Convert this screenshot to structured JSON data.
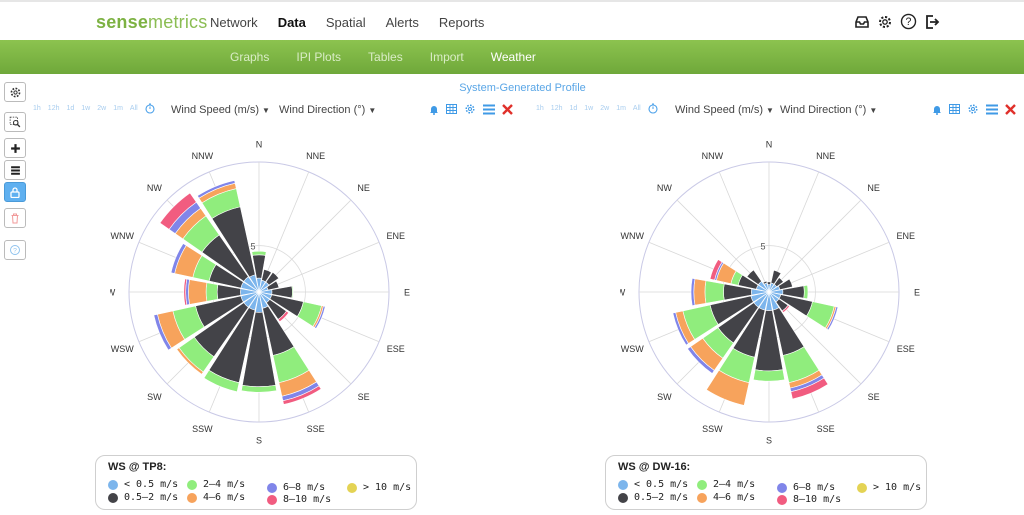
{
  "brand": {
    "part1": "sense",
    "part2": "metrics"
  },
  "nav": {
    "items": [
      "Network",
      "Data",
      "Spatial",
      "Alerts",
      "Reports"
    ],
    "active": "Data"
  },
  "top_icons": [
    "inbox-icon",
    "gear-icon",
    "help-icon",
    "logout-icon"
  ],
  "subnav": {
    "items": [
      "Graphs",
      "IPI Plots",
      "Tables",
      "Import",
      "Weather"
    ],
    "active": "Weather"
  },
  "profile_label": "System-Generated Profile",
  "time_ranges": [
    "1h",
    "12h",
    "1d",
    "1w",
    "2w",
    "1m",
    "All"
  ],
  "dropdowns": {
    "speed": "Wind Speed (m/s)",
    "direction": "Wind Direction (°)"
  },
  "colors": {
    "brand_green": "#7db243",
    "accent_blue": "#5aa6e6",
    "close_red": "#e0302a"
  },
  "chart_data": [
    {
      "type": "windrose",
      "title": "WS @ TP8:",
      "directions": [
        "N",
        "NNE",
        "NE",
        "ENE",
        "E",
        "ESE",
        "SE",
        "SSE",
        "S",
        "SSW",
        "SW",
        "WSW",
        "W",
        "WNW",
        "NW",
        "NNW"
      ],
      "ring_labels": [
        {
          "value": 5,
          "label": "5"
        }
      ],
      "rmax": 14,
      "bins": [
        {
          "name": "< 0.5 m/s",
          "color": "#7cb5ec"
        },
        {
          "name": "0.5–2 m/s",
          "color": "#434348"
        },
        {
          "name": "2–4 m/s",
          "color": "#90ed7d"
        },
        {
          "name": "4–6 m/s",
          "color": "#f7a35c"
        },
        {
          "name": "6–8 m/s",
          "color": "#8085e9"
        },
        {
          "name": "8–10 m/s",
          "color": "#f15c80"
        },
        {
          "name": "> 10 m/s",
          "color": "#e4d354"
        }
      ],
      "values": [
        [
          1.5,
          2.5,
          0.4,
          0,
          0,
          0,
          0
        ],
        [
          1.3,
          1.2,
          0,
          0,
          0,
          0,
          0
        ],
        [
          1.3,
          1.3,
          0,
          0,
          0,
          0,
          0
        ],
        [
          1.0,
          1.2,
          0,
          0,
          0,
          0,
          0
        ],
        [
          1.4,
          2.2,
          0.1,
          0,
          0,
          0,
          0
        ],
        [
          1.4,
          3.5,
          2.0,
          0.2,
          0.2,
          0,
          0
        ],
        [
          1.4,
          2.2,
          0,
          0,
          0,
          0.3,
          0
        ],
        [
          1.8,
          5.2,
          3.0,
          1.5,
          0.5,
          0.4,
          0
        ],
        [
          2.2,
          8.0,
          0.6,
          0,
          0,
          0,
          0
        ],
        [
          2.0,
          8.0,
          1.0,
          0,
          0,
          0,
          0
        ],
        [
          2.0,
          6.5,
          2.0,
          0.3,
          0,
          0,
          0
        ],
        [
          2.0,
          5.0,
          2.5,
          1.7,
          0.4,
          0,
          0
        ],
        [
          2.0,
          2.5,
          1.2,
          1.9,
          0.3,
          0.2,
          0
        ],
        [
          2.0,
          3.5,
          1.8,
          2.0,
          0.4,
          0,
          0
        ],
        [
          2.0,
          5.5,
          2.5,
          1.0,
          0.8,
          1.2,
          0
        ],
        [
          1.9,
          7.5,
          2.0,
          0.6,
          0.3,
          0,
          0
        ]
      ]
    },
    {
      "type": "windrose",
      "title": "WS @ DW-16:",
      "directions": [
        "N",
        "NNE",
        "NE",
        "ENE",
        "E",
        "ESE",
        "SE",
        "SSE",
        "S",
        "SSW",
        "SW",
        "WSW",
        "W",
        "WNW",
        "NW",
        "NNW"
      ],
      "ring_labels": [
        {
          "value": 5,
          "label": "5"
        }
      ],
      "rmax": 14,
      "bins": [
        {
          "name": "< 0.5 m/s",
          "color": "#7cb5ec"
        },
        {
          "name": "0.5–2 m/s",
          "color": "#434348"
        },
        {
          "name": "2–4 m/s",
          "color": "#90ed7d"
        },
        {
          "name": "4–6 m/s",
          "color": "#f7a35c"
        },
        {
          "name": "6–8 m/s",
          "color": "#8085e9"
        },
        {
          "name": "8–10 m/s",
          "color": "#f15c80"
        },
        {
          "name": "> 10 m/s",
          "color": "#e4d354"
        }
      ],
      "values": [
        [
          0.8,
          0.3,
          0,
          0,
          0,
          0,
          0
        ],
        [
          1.0,
          1.4,
          0,
          0,
          0,
          0,
          0
        ],
        [
          1.0,
          0.9,
          0,
          0,
          0,
          0,
          0
        ],
        [
          1.2,
          1.4,
          0,
          0,
          0,
          0,
          0
        ],
        [
          1.5,
          2.3,
          0.4,
          0,
          0,
          0,
          0
        ],
        [
          1.3,
          3.5,
          2.4,
          0.2,
          0.2,
          0,
          0
        ],
        [
          1.3,
          1.2,
          0,
          0,
          0,
          0.2,
          0
        ],
        [
          2.0,
          5.0,
          3.0,
          0.6,
          0.4,
          0.8,
          0
        ],
        [
          2.0,
          6.5,
          1.1,
          0,
          0,
          0,
          0
        ],
        [
          2.0,
          5.2,
          2.8,
          2.5,
          0,
          0,
          0
        ],
        [
          2.0,
          4.7,
          2.0,
          1.6,
          0.4,
          0,
          0
        ],
        [
          2.0,
          4.5,
          3.0,
          0.8,
          0.3,
          0,
          0
        ],
        [
          1.9,
          3.0,
          2.0,
          1.2,
          0.3,
          0,
          0
        ],
        [
          1.4,
          2.0,
          0.8,
          1.6,
          0.2,
          0.5,
          0
        ],
        [
          1.4,
          1.5,
          0,
          0,
          0,
          0,
          0
        ],
        [
          1.0,
          0.2,
          0,
          0,
          0,
          0,
          0
        ]
      ]
    }
  ]
}
